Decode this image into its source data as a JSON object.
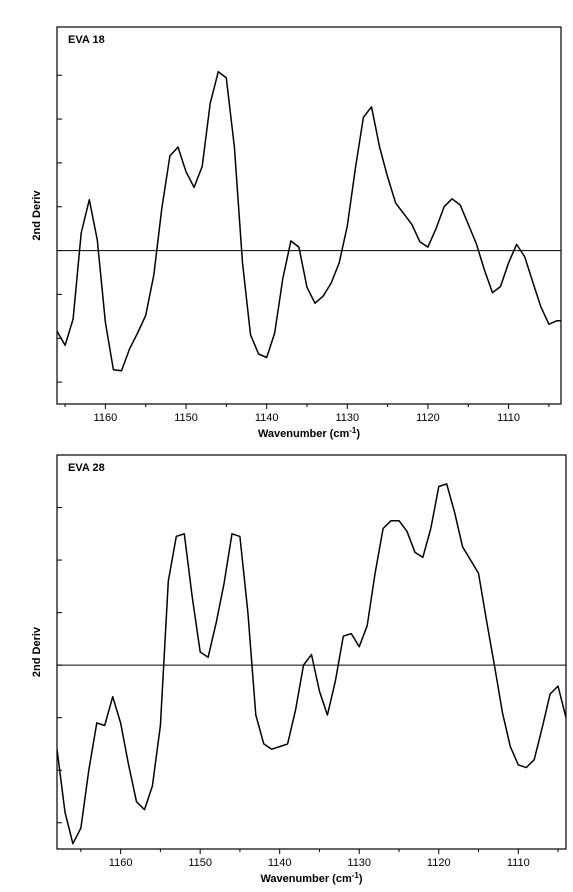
{
  "chart_data": [
    {
      "type": "line",
      "title": "EVA  18",
      "xlabel": "Wavenumber (cm",
      "xlabel_sup": "-1",
      "xlabel_end": ")",
      "ylabel": "2nd Deriv",
      "xlim": [
        1166,
        1103.5
      ],
      "ylim": [
        -1.75,
        2.55
      ],
      "x_reversed": true,
      "x_ticks": [
        1160,
        1150,
        1140,
        1130,
        1120,
        1110
      ],
      "x_tick_labels": [
        "1160",
        "1150",
        "1140",
        "1130",
        "1120",
        "1110"
      ],
      "y_ticks_unlabeled": [
        -1.5,
        -1,
        -0.5,
        0,
        0.5,
        1,
        1.5,
        2
      ],
      "zero_line": true,
      "series": [
        {
          "x": [
            1166,
            1165,
            1164,
            1163,
            1162,
            1161,
            1160,
            1159,
            1158,
            1157,
            1156,
            1155,
            1154,
            1153,
            1152,
            1151,
            1150,
            1149,
            1148,
            1147,
            1146,
            1145,
            1144,
            1143,
            1142,
            1141,
            1140,
            1139,
            1138,
            1137,
            1136,
            1135,
            1134,
            1133,
            1132,
            1131,
            1130,
            1129,
            1128,
            1127,
            1126,
            1125,
            1124,
            1123,
            1122,
            1121,
            1120,
            1119,
            1118,
            1117,
            1116,
            1115,
            1114,
            1113,
            1112,
            1111,
            1110,
            1109,
            1108,
            1107,
            1106,
            1105,
            1104,
            1103.5
          ],
          "y": [
            -0.92,
            -1.08,
            -0.78,
            0.2,
            0.58,
            0.12,
            -0.82,
            -1.36,
            -1.37,
            -1.12,
            -0.94,
            -0.74,
            -0.28,
            0.48,
            1.08,
            1.18,
            0.9,
            0.72,
            0.96,
            1.68,
            2.04,
            1.97,
            1.18,
            -0.14,
            -0.96,
            -1.18,
            -1.22,
            -0.94,
            -0.32,
            0.11,
            0.04,
            -0.42,
            -0.6,
            -0.52,
            -0.37,
            -0.14,
            0.28,
            0.94,
            1.52,
            1.64,
            1.18,
            0.84,
            0.54,
            0.42,
            0.3,
            0.1,
            0.04,
            0.25,
            0.5,
            0.59,
            0.52,
            0.3,
            0.08,
            -0.22,
            -0.48,
            -0.41,
            -0.14,
            0.07,
            -0.07,
            -0.36,
            -0.64,
            -0.84,
            -0.8,
            -0.8
          ]
        }
      ]
    },
    {
      "type": "line",
      "title": "EVA  28",
      "xlabel": "Wavenumber (cm",
      "xlabel_sup": "-1",
      "xlabel_end": ")",
      "ylabel": "2nd Deriv",
      "xlim": [
        1168,
        1104
      ],
      "ylim": [
        -3.5,
        4.0
      ],
      "x_reversed": true,
      "x_ticks": [
        1160,
        1150,
        1140,
        1130,
        1120,
        1110
      ],
      "x_tick_labels": [
        "1160",
        "1150",
        "1140",
        "1130",
        "1120",
        "1110"
      ],
      "y_ticks_unlabeled": [
        -3,
        -2,
        -1,
        0,
        1,
        2,
        3
      ],
      "zero_line": true,
      "series": [
        {
          "x": [
            1168,
            1167,
            1166,
            1165,
            1164,
            1163,
            1162,
            1161,
            1160,
            1159,
            1158,
            1157,
            1156,
            1155,
            1154,
            1153,
            1152,
            1151,
            1150,
            1149,
            1148,
            1147,
            1146,
            1145,
            1144,
            1143,
            1142,
            1141,
            1140,
            1139,
            1138,
            1137,
            1136,
            1135,
            1134,
            1133,
            1132,
            1131,
            1130,
            1129,
            1128,
            1127,
            1126,
            1125,
            1124,
            1123,
            1122,
            1121,
            1120,
            1119,
            1118,
            1117,
            1116,
            1115,
            1114,
            1113,
            1112,
            1111,
            1110,
            1109,
            1108,
            1107,
            1106,
            1105,
            1104
          ],
          "y": [
            -1.6,
            -2.8,
            -3.4,
            -3.1,
            -2.0,
            -1.1,
            -1.15,
            -0.6,
            -1.1,
            -1.9,
            -2.6,
            -2.75,
            -2.3,
            -1.15,
            1.6,
            2.45,
            2.5,
            1.3,
            0.25,
            0.15,
            0.8,
            1.55,
            2.5,
            2.45,
            1.0,
            -0.95,
            -1.5,
            -1.6,
            -1.55,
            -1.5,
            -0.85,
            0.0,
            0.2,
            -0.5,
            -0.95,
            -0.3,
            0.55,
            0.6,
            0.35,
            0.75,
            1.75,
            2.6,
            2.75,
            2.75,
            2.55,
            2.15,
            2.05,
            2.6,
            3.4,
            3.45,
            2.9,
            2.25,
            2.0,
            1.75,
            0.85,
            0.0,
            -0.9,
            -1.55,
            -1.9,
            -1.95,
            -1.8,
            -1.2,
            -0.55,
            -0.4,
            -1.0
          ]
        }
      ]
    }
  ]
}
